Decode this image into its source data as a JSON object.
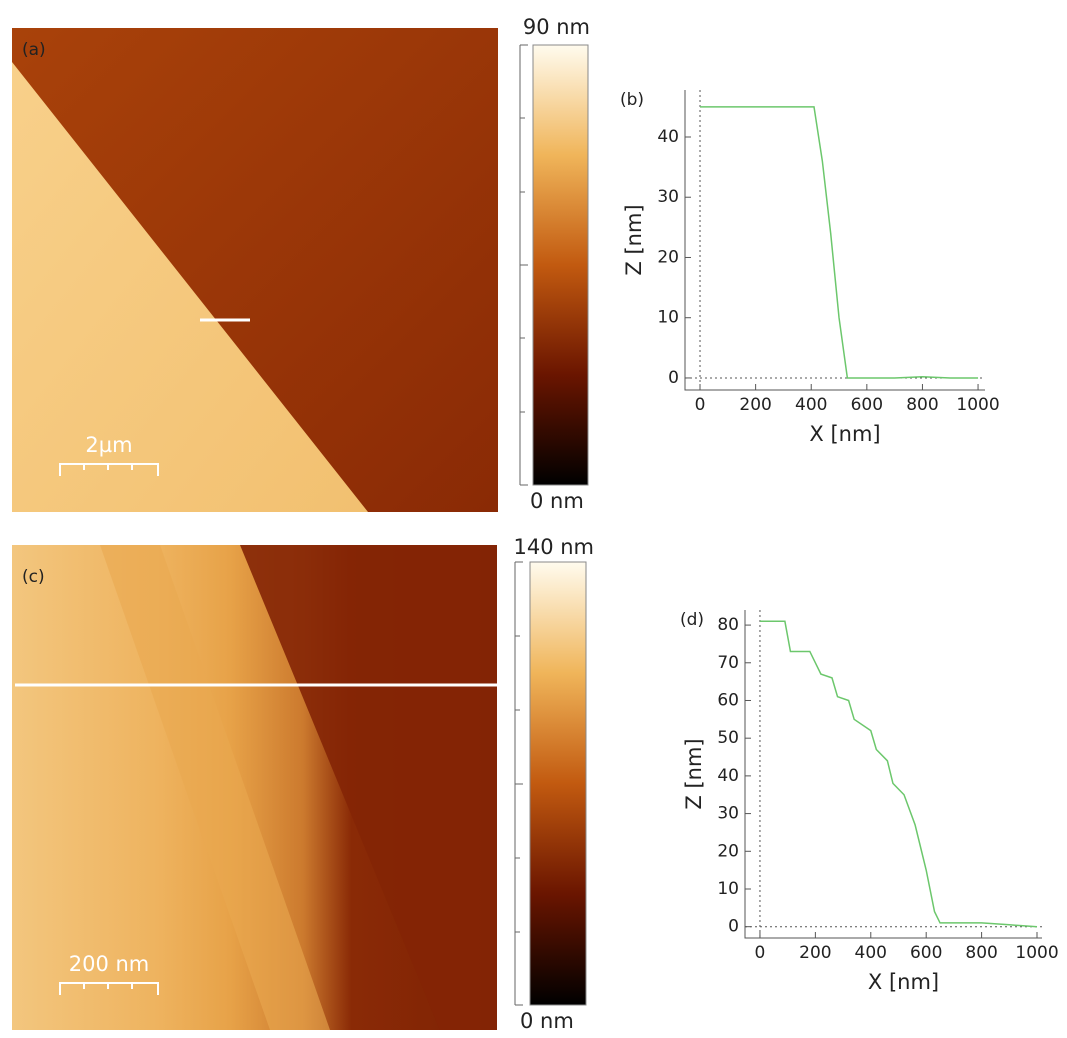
{
  "images": [
    {
      "label": "(a)",
      "scale_bar": "2µm",
      "colorbar_max": "90 nm",
      "colorbar_min": "0 nm"
    },
    {
      "label": "(c)",
      "scale_bar": "200 nm",
      "colorbar_max": "140 nm",
      "colorbar_min": "0 nm"
    }
  ],
  "chart_data": [
    {
      "type": "line",
      "label": "(b)",
      "x_label": "X [nm]",
      "y_label": "Z [nm]",
      "x": [
        0,
        100,
        200,
        300,
        410,
        440,
        470,
        500,
        530,
        560,
        600,
        700,
        800,
        900,
        1000
      ],
      "series": [
        {
          "color": "#6cc76c",
          "values": [
            45,
            45,
            45,
            45,
            45,
            36,
            24,
            10,
            0,
            0,
            0,
            0,
            0.2,
            0,
            0
          ]
        }
      ],
      "xlim": [
        -54,
        1025
      ],
      "ylim": [
        -2,
        47.8
      ],
      "xticks": [
        0,
        200,
        400,
        600,
        800,
        1000
      ],
      "yticks": [
        0,
        10,
        20,
        30,
        40
      ]
    },
    {
      "type": "line",
      "label": "(d)",
      "x_label": "X [nm]",
      "y_label": "Z [nm]",
      "x": [
        0,
        90,
        110,
        180,
        200,
        220,
        260,
        280,
        320,
        340,
        400,
        420,
        460,
        480,
        520,
        560,
        600,
        630,
        650,
        700,
        800,
        900,
        1000
      ],
      "series": [
        {
          "color": "#6cc76c",
          "values": [
            81,
            81,
            73,
            73,
            70,
            67,
            66,
            61,
            60,
            55,
            52,
            47,
            44,
            38,
            35,
            27,
            15,
            4,
            1,
            1,
            1,
            0.5,
            0
          ]
        }
      ],
      "xlim": [
        -54,
        1018
      ],
      "ylim": [
        -3,
        84
      ],
      "xticks": [
        0,
        200,
        400,
        600,
        800,
        1000
      ],
      "yticks": [
        0,
        10,
        20,
        30,
        40,
        50,
        60,
        70,
        80
      ]
    }
  ]
}
